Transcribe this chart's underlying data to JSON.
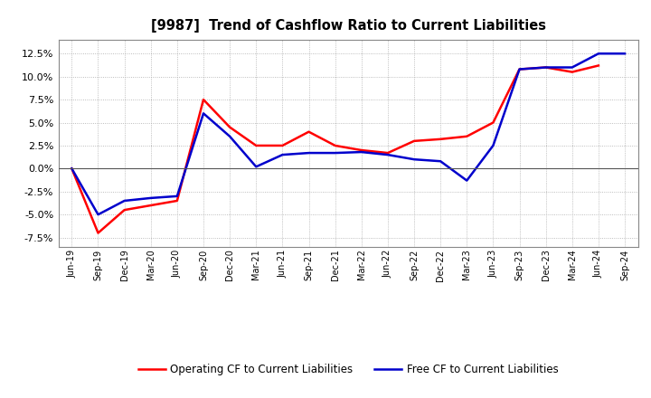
{
  "title": "[9987]  Trend of Cashflow Ratio to Current Liabilities",
  "x_labels": [
    "Jun-19",
    "Sep-19",
    "Dec-19",
    "Mar-20",
    "Jun-20",
    "Sep-20",
    "Dec-20",
    "Mar-21",
    "Jun-21",
    "Sep-21",
    "Dec-21",
    "Mar-22",
    "Jun-22",
    "Sep-22",
    "Dec-22",
    "Mar-23",
    "Jun-23",
    "Sep-23",
    "Dec-23",
    "Mar-24",
    "Jun-24",
    "Sep-24"
  ],
  "operating_cf": [
    0.0,
    -7.0,
    -4.5,
    -4.0,
    -3.5,
    7.5,
    4.5,
    2.5,
    2.5,
    4.0,
    2.5,
    2.0,
    1.7,
    3.0,
    3.2,
    3.5,
    5.0,
    10.8,
    11.0,
    10.5,
    11.2,
    null
  ],
  "free_cf": [
    0.0,
    -5.0,
    -3.5,
    -3.2,
    -3.0,
    6.0,
    3.5,
    0.2,
    1.5,
    1.7,
    1.7,
    1.8,
    1.5,
    1.0,
    0.8,
    -1.3,
    2.5,
    10.8,
    11.0,
    11.0,
    12.5,
    12.5
  ],
  "operating_color": "#ff0000",
  "free_color": "#0000cc",
  "ylim": [
    -8.5,
    14.0
  ],
  "yticks": [
    -7.5,
    -5.0,
    -2.5,
    0.0,
    2.5,
    5.0,
    7.5,
    10.0,
    12.5
  ],
  "legend_op": "Operating CF to Current Liabilities",
  "legend_free": "Free CF to Current Liabilities",
  "background_color": "#ffffff",
  "plot_bg_color": "#ffffff"
}
